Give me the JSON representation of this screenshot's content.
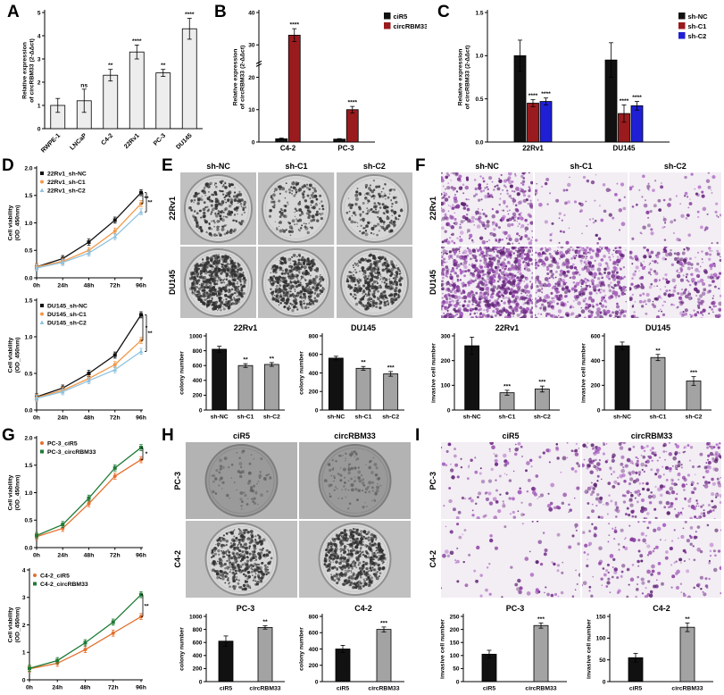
{
  "panels": {
    "A": {
      "letter": "A"
    },
    "B": {
      "letter": "B"
    },
    "C": {
      "letter": "C"
    },
    "D": {
      "letter": "D"
    },
    "E": {
      "letter": "E",
      "img_type": "colony",
      "col_labels": [
        "sh-NC",
        "sh-C1",
        "sh-C2"
      ],
      "row_labels": [
        "22Rv1",
        "DU145"
      ],
      "cells": [
        [
          {
            "density": 260
          },
          {
            "density": 170
          },
          {
            "density": 180
          }
        ],
        [
          {
            "density": 650
          },
          {
            "density": 470
          },
          {
            "density": 430
          }
        ]
      ]
    },
    "F": {
      "letter": "F",
      "img_type": "invasion",
      "col_labels": [
        "sh-NC",
        "sh-C1",
        "sh-C2"
      ],
      "row_labels": [
        "22Rv1",
        "DU145"
      ],
      "cells": [
        [
          {
            "density": 320
          },
          {
            "density": 70
          },
          {
            "density": 85
          }
        ],
        [
          {
            "density": 900
          },
          {
            "density": 550
          },
          {
            "density": 300
          }
        ]
      ]
    },
    "G": {
      "letter": "G"
    },
    "H": {
      "letter": "H",
      "img_type": "colony",
      "col_labels": [
        "ciR5",
        "circRBM33"
      ],
      "row_labels": [
        "PC-3",
        "C4-2"
      ],
      "cells": [
        [
          {
            "density": 80,
            "shade": "dark"
          },
          {
            "density": 120,
            "shade": "dark"
          }
        ],
        [
          {
            "density": 420
          },
          {
            "density": 600
          }
        ]
      ]
    },
    "I": {
      "letter": "I",
      "img_type": "invasion",
      "col_labels": [
        "ciR5",
        "circRBM33"
      ],
      "row_labels": [
        "PC-3",
        "C4-2"
      ],
      "cells": [
        [
          {
            "density": 150
          },
          {
            "density": 380
          }
        ],
        [
          {
            "density": 80
          },
          {
            "density": 190
          }
        ]
      ]
    }
  },
  "colors": {
    "black": "#111111",
    "maroon": "#9a1b1e",
    "blue": "#1f1fd6",
    "gray_bar": "#a3a3a3",
    "orange_line": "#f29a4a",
    "lightblue_line": "#8fc3e0",
    "orange2_line": "#e4702e",
    "green_line": "#1e7a35",
    "purple_stain": "#8a3fa0"
  },
  "chart_data": [
    {
      "id": "A",
      "type": "bar",
      "ylabel": "Relative expression of circRBM33 (2-ΔΔct)",
      "ylim": [
        0,
        5
      ],
      "yticks": [
        0,
        1,
        2,
        3,
        4,
        5
      ],
      "categories": [
        "RWPE-1",
        "LNCaP",
        "C4-2",
        "22Rv1",
        "PC-3",
        "DU145"
      ],
      "values": [
        1.0,
        1.2,
        2.3,
        3.3,
        2.4,
        4.3
      ],
      "errors": [
        0.3,
        0.5,
        0.25,
        0.3,
        0.15,
        0.45
      ],
      "sig": [
        "",
        "ns",
        "**",
        "****",
        "**",
        "****"
      ],
      "bar_color": "#ededed",
      "rotate_x": true
    },
    {
      "id": "B",
      "type": "grouped_bar",
      "ylabel": "Relative expression of circRBM33 (2-ΔΔct)",
      "ylim": [
        0,
        40
      ],
      "yticks": [
        0,
        10,
        20,
        30,
        40
      ],
      "categories": [
        "C4-2",
        "PC-3"
      ],
      "axis_break": true,
      "legend_right": true,
      "series": [
        {
          "name": "ciR5",
          "color": "#111111",
          "values": [
            1.0,
            0.9
          ],
          "errors": [
            0.2,
            0.15
          ],
          "sig": [
            "",
            ""
          ]
        },
        {
          "name": "circRBM33",
          "color": "#9a1b1e",
          "values": [
            33,
            10
          ],
          "errors": [
            2,
            1
          ],
          "sig": [
            "****",
            "****"
          ]
        }
      ]
    },
    {
      "id": "C",
      "type": "grouped_bar",
      "ylabel": "Relative expression of circRBM33 (2-ΔΔct)",
      "ylim": [
        0,
        1.5
      ],
      "yticks": [
        0,
        0.5,
        1.0,
        1.5
      ],
      "categories": [
        "22Rv1",
        "DU145"
      ],
      "legend_right": true,
      "series": [
        {
          "name": "sh-NC",
          "color": "#111111",
          "values": [
            1.0,
            0.95
          ],
          "errors": [
            0.18,
            0.2
          ],
          "sig": [
            "",
            ""
          ]
        },
        {
          "name": "sh-C1",
          "color": "#9a1b1e",
          "values": [
            0.45,
            0.33
          ],
          "errors": [
            0.04,
            0.1
          ],
          "sig": [
            "****",
            "****"
          ]
        },
        {
          "name": "sh-C2",
          "color": "#1f1fd6",
          "values": [
            0.47,
            0.42
          ],
          "errors": [
            0.04,
            0.05
          ],
          "sig": [
            "****",
            "****"
          ]
        }
      ]
    },
    {
      "id": "D1",
      "type": "line",
      "ylabel": "Cell viability (OD_450nm)",
      "ylim": [
        0,
        2.0
      ],
      "yticks": [
        0,
        0.5,
        1.0,
        1.5,
        2.0
      ],
      "x": [
        "0h",
        "24h",
        "48h",
        "72h",
        "96h"
      ],
      "sig": [
        "**",
        "**"
      ],
      "series": [
        {
          "name": "22Rv1_sh-NC",
          "color": "#111111",
          "marker": "square",
          "values": [
            0.2,
            0.35,
            0.65,
            1.05,
            1.55
          ]
        },
        {
          "name": "22Rv1_sh-C1",
          "color": "#f29a4a",
          "marker": "circle",
          "values": [
            0.2,
            0.3,
            0.5,
            0.85,
            1.35
          ]
        },
        {
          "name": "22Rv1_sh-C2",
          "color": "#8fc3e0",
          "marker": "triangle",
          "values": [
            0.18,
            0.28,
            0.45,
            0.75,
            1.2
          ]
        }
      ]
    },
    {
      "id": "D2",
      "type": "line",
      "ylabel": "Cell viability (OD_450nm)",
      "ylim": [
        0,
        1.5
      ],
      "yticks": [
        0,
        0.5,
        1.0,
        1.5
      ],
      "x": [
        "0h",
        "24h",
        "48h",
        "72h",
        "96h"
      ],
      "sig": [
        "*",
        "**"
      ],
      "series": [
        {
          "name": "DU145_sh-NC",
          "color": "#111111",
          "marker": "square",
          "values": [
            0.18,
            0.3,
            0.5,
            0.75,
            1.3
          ]
        },
        {
          "name": "DU145_sh-C1",
          "color": "#f29a4a",
          "marker": "circle",
          "values": [
            0.17,
            0.27,
            0.43,
            0.62,
            0.95
          ]
        },
        {
          "name": "DU145_sh-C2",
          "color": "#8fc3e0",
          "marker": "triangle",
          "values": [
            0.16,
            0.25,
            0.4,
            0.55,
            0.8
          ]
        }
      ]
    },
    {
      "id": "E1",
      "type": "bar",
      "title": "22Rv1",
      "ylabel": "colony number",
      "ylim": [
        0,
        1000
      ],
      "yticks": [
        0,
        200,
        400,
        600,
        800,
        1000
      ],
      "categories": [
        "sh-NC",
        "sh-C1",
        "sh-C2"
      ],
      "values": [
        820,
        600,
        615
      ],
      "errors": [
        40,
        25,
        25
      ],
      "sig": [
        "",
        "**",
        "**"
      ],
      "colors": [
        "#111111",
        "#a3a3a3",
        "#a3a3a3"
      ]
    },
    {
      "id": "E2",
      "type": "bar",
      "title": "DU145",
      "ylabel": "colony number",
      "ylim": [
        0,
        800
      ],
      "yticks": [
        0,
        200,
        400,
        600,
        800
      ],
      "categories": [
        "sh-NC",
        "sh-C1",
        "sh-C2"
      ],
      "values": [
        560,
        450,
        390
      ],
      "errors": [
        20,
        20,
        25
      ],
      "sig": [
        "",
        "**",
        "***"
      ],
      "colors": [
        "#111111",
        "#a3a3a3",
        "#a3a3a3"
      ]
    },
    {
      "id": "F1",
      "type": "bar",
      "title": "22Rv1",
      "ylabel": "invasive cell number",
      "ylim": [
        0,
        300
      ],
      "yticks": [
        0,
        100,
        200,
        300
      ],
      "categories": [
        "sh-NC",
        "sh-C1",
        "sh-C2"
      ],
      "values": [
        260,
        70,
        85
      ],
      "errors": [
        35,
        10,
        12
      ],
      "sig": [
        "",
        "***",
        "***"
      ],
      "colors": [
        "#111111",
        "#a3a3a3",
        "#a3a3a3"
      ]
    },
    {
      "id": "F2",
      "type": "bar",
      "title": "DU145",
      "ylabel": "invasive cell number",
      "ylim": [
        0,
        600
      ],
      "yticks": [
        0,
        200,
        400,
        600
      ],
      "categories": [
        "sh-NC",
        "sh-C1",
        "sh-C2"
      ],
      "values": [
        520,
        425,
        235
      ],
      "errors": [
        30,
        25,
        35
      ],
      "sig": [
        "",
        "**",
        "***"
      ],
      "colors": [
        "#111111",
        "#a3a3a3",
        "#a3a3a3"
      ]
    },
    {
      "id": "G1",
      "type": "line",
      "ylabel": "Cell viability (OD_450nm)",
      "ylim": [
        0,
        2.0
      ],
      "yticks": [
        0,
        0.5,
        1.0,
        1.5,
        2.0
      ],
      "x": [
        "0h",
        "24h",
        "48h",
        "72h",
        "96h"
      ],
      "sig": [
        "*"
      ],
      "series": [
        {
          "name": "PC-3_ciR5",
          "color": "#e4702e",
          "marker": "circle",
          "values": [
            0.2,
            0.35,
            0.8,
            1.3,
            1.6
          ]
        },
        {
          "name": "PC-3_circRBM33",
          "color": "#1e7a35",
          "marker": "square",
          "values": [
            0.22,
            0.42,
            0.9,
            1.45,
            1.82
          ]
        }
      ]
    },
    {
      "id": "G2",
      "type": "line",
      "ylabel": "Cell viability (OD_450nm)",
      "ylim": [
        0,
        4
      ],
      "yticks": [
        0,
        1,
        2,
        3,
        4
      ],
      "x": [
        "0h",
        "24h",
        "48h",
        "72h",
        "96h"
      ],
      "sig": [
        "**"
      ],
      "series": [
        {
          "name": "C4-2_ciR5",
          "color": "#e4702e",
          "marker": "circle",
          "values": [
            0.4,
            0.6,
            1.1,
            1.7,
            2.3
          ]
        },
        {
          "name": "C4-2_circRBM33",
          "color": "#1e7a35",
          "marker": "square",
          "values": [
            0.42,
            0.7,
            1.35,
            2.1,
            3.1
          ]
        }
      ]
    },
    {
      "id": "H1",
      "type": "bar",
      "title": "PC-3",
      "ylabel": "colony number",
      "ylim": [
        0,
        1000
      ],
      "yticks": [
        0,
        200,
        400,
        600,
        800,
        1000
      ],
      "categories": [
        "ciR5",
        "circRBM33"
      ],
      "values": [
        620,
        830
      ],
      "errors": [
        80,
        25
      ],
      "sig": [
        "",
        "**"
      ],
      "colors": [
        "#111111",
        "#a3a3a3"
      ]
    },
    {
      "id": "H2",
      "type": "bar",
      "title": "C4-2",
      "ylabel": "colony number",
      "ylim": [
        0,
        800
      ],
      "yticks": [
        0,
        200,
        400,
        600,
        800
      ],
      "categories": [
        "ciR5",
        "circRBM33"
      ],
      "values": [
        400,
        640
      ],
      "errors": [
        45,
        30
      ],
      "sig": [
        "",
        "***"
      ],
      "colors": [
        "#111111",
        "#a3a3a3"
      ]
    },
    {
      "id": "I1",
      "type": "bar",
      "title": "PC-3",
      "ylabel": "invasive cell number",
      "ylim": [
        0,
        250
      ],
      "yticks": [
        0,
        50,
        100,
        150,
        200,
        250
      ],
      "categories": [
        "ciR5",
        "circRBM33"
      ],
      "values": [
        105,
        215
      ],
      "errors": [
        15,
        10
      ],
      "sig": [
        "",
        "***"
      ],
      "colors": [
        "#111111",
        "#a3a3a3"
      ]
    },
    {
      "id": "I2",
      "type": "bar",
      "title": "C4-2",
      "ylabel": "invasive cell number",
      "ylim": [
        0,
        150
      ],
      "yticks": [
        0,
        50,
        100,
        150
      ],
      "categories": [
        "ciR5",
        "circRBM33"
      ],
      "values": [
        55,
        125
      ],
      "errors": [
        10,
        10
      ],
      "sig": [
        "",
        "**"
      ],
      "colors": [
        "#111111",
        "#a3a3a3"
      ]
    }
  ]
}
